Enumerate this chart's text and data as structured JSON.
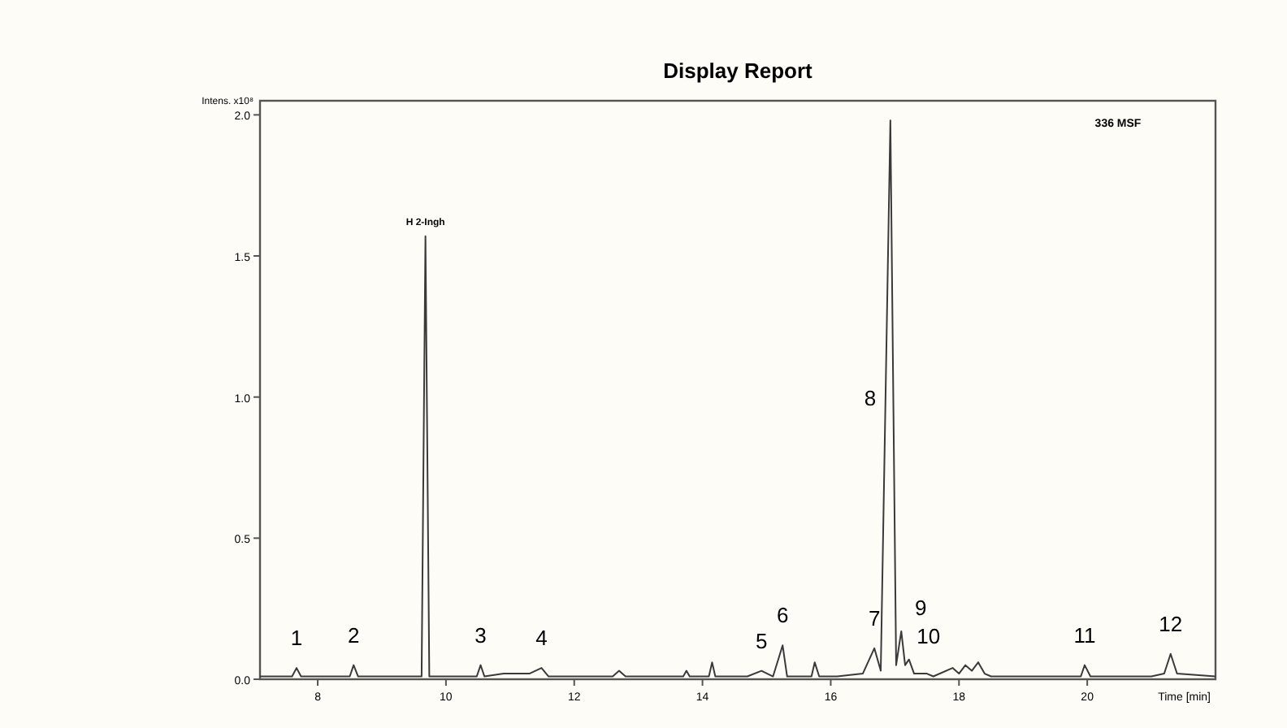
{
  "chart_data": {
    "type": "line",
    "title": "Display Report",
    "xlabel": "Time [min]",
    "ylabel": "Intens. x10⁸",
    "xlim": [
      7.1,
      22.0
    ],
    "xticks": [
      8,
      10,
      12,
      14,
      16,
      18,
      20
    ],
    "ylim": [
      0,
      2.05
    ],
    "yticks": [
      {
        "value": 0,
        "label": "0.0"
      },
      0.5,
      {
        "value": 1,
        "label": "1.0"
      },
      1.5,
      {
        "value": 2,
        "label": "2.0"
      }
    ],
    "grid": false,
    "marker": "none",
    "line_style": "solid",
    "series": [
      {
        "color": "#3a3a3a",
        "x": [
          7.1,
          7.6,
          7.67,
          7.74,
          8.5,
          8.56,
          8.63,
          9.62,
          9.68,
          9.74,
          10.48,
          10.54,
          10.6,
          10.9,
          11.1,
          11.3,
          11.49,
          11.6,
          12.6,
          12.7,
          12.8,
          13.7,
          13.75,
          13.8,
          14.1,
          14.15,
          14.2,
          14.7,
          14.92,
          15.1,
          15.25,
          15.32,
          15.7,
          15.75,
          15.82,
          16.1,
          16.5,
          16.68,
          16.78,
          16.93,
          17.02,
          17.1,
          17.16,
          17.22,
          17.3,
          17.5,
          17.6,
          17.9,
          18.0,
          18.1,
          18.2,
          18.3,
          18.4,
          18.5,
          19.0,
          19.9,
          19.96,
          20.05,
          21.0,
          21.2,
          21.3,
          21.4,
          22.0
        ],
        "values": [
          0.01,
          0.01,
          0.04,
          0.01,
          0.01,
          0.05,
          0.01,
          0.01,
          1.57,
          0.01,
          0.01,
          0.05,
          0.01,
          0.02,
          0.02,
          0.02,
          0.04,
          0.01,
          0.01,
          0.03,
          0.01,
          0.01,
          0.03,
          0.01,
          0.01,
          0.06,
          0.01,
          0.01,
          0.03,
          0.01,
          0.12,
          0.01,
          0.01,
          0.06,
          0.01,
          0.01,
          0.02,
          0.11,
          0.03,
          1.98,
          0.05,
          0.17,
          0.05,
          0.07,
          0.02,
          0.02,
          0.01,
          0.04,
          0.02,
          0.05,
          0.03,
          0.06,
          0.02,
          0.01,
          0.01,
          0.01,
          0.05,
          0.01,
          0.01,
          0.02,
          0.09,
          0.02,
          0.01
        ]
      }
    ],
    "annotations": [
      {
        "text": "H 2-Ingh",
        "x": 9.68,
        "y": 1.57
      },
      "336 MSF",
      {
        "text": "1",
        "x": 7.67,
        "y": 0.04
      },
      {
        "text": "2",
        "x": 8.56,
        "y": 0.05
      },
      {
        "text": "3",
        "x": 10.54,
        "y": 0.05
      },
      {
        "text": "4",
        "x": 11.49,
        "y": 0.04
      },
      {
        "text": "5",
        "x": 14.92,
        "y": 0.03
      },
      {
        "text": "6",
        "x": 15.25,
        "y": 0.12
      },
      {
        "text": "7",
        "x": 16.68,
        "y": 0.11
      },
      {
        "text": "8",
        "x": 16.86,
        "y": 1.0
      },
      {
        "text": "9",
        "x": 17.1,
        "y": 0.17
      },
      {
        "text": "10",
        "x": 17.22,
        "y": 0.07
      },
      {
        "text": "11",
        "x": 19.96,
        "y": 0.05
      },
      {
        "text": "12",
        "x": 21.3,
        "y": 0.09
      }
    ]
  }
}
